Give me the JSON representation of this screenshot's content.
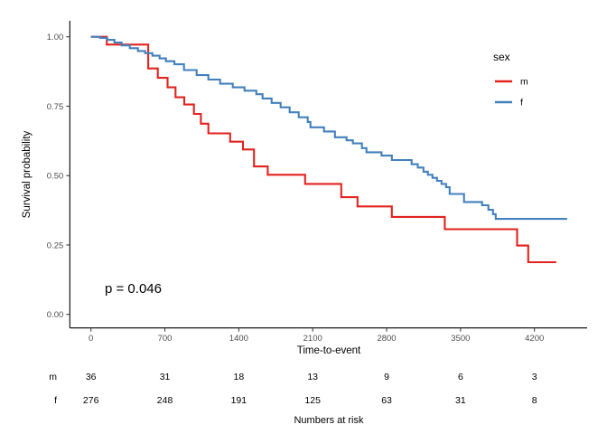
{
  "chart_data": {
    "type": "line",
    "subtype": "kaplan-meier-step",
    "title": "",
    "xlabel": "Time-to-event",
    "ylabel": "Survival probability",
    "p_value": "p = 0.046",
    "grid": false,
    "legend_position": "right",
    "x_axis": {
      "tick_values": [
        0,
        700,
        1400,
        2100,
        2800,
        3500,
        4200
      ],
      "tick_labels": [
        "0",
        "700",
        "1400",
        "2100",
        "2800",
        "3500",
        "4200"
      ],
      "range": [
        -200,
        4700
      ]
    },
    "y_axis": {
      "tick_values": [
        0,
        0.25,
        0.5,
        0.75,
        1.0
      ],
      "tick_labels": [
        "0.00",
        "0.25",
        "0.50",
        "0.75",
        "1.00"
      ],
      "range": [
        -0.05,
        1.05
      ]
    },
    "legend": {
      "title": "sex",
      "items": [
        {
          "label": "m",
          "color": "#e2231e"
        },
        {
          "label": "f",
          "color": "#4381bd"
        }
      ]
    },
    "series": [
      {
        "name": "m",
        "color": "#e2231e",
        "end_time": 4406,
        "points": [
          [
            0,
            1.0
          ],
          [
            150,
            0.972
          ],
          [
            542,
            0.886
          ],
          [
            633,
            0.852
          ],
          [
            725,
            0.818
          ],
          [
            801,
            0.782
          ],
          [
            884,
            0.756
          ],
          [
            975,
            0.722
          ],
          [
            1041,
            0.687
          ],
          [
            1112,
            0.652
          ],
          [
            1318,
            0.622
          ],
          [
            1440,
            0.594
          ],
          [
            1544,
            0.533
          ],
          [
            1674,
            0.503
          ],
          [
            2028,
            0.47
          ],
          [
            2370,
            0.422
          ],
          [
            2524,
            0.389
          ],
          [
            2849,
            0.351
          ],
          [
            3351,
            0.307
          ],
          [
            4036,
            0.248
          ],
          [
            4141,
            0.188
          ]
        ]
      },
      {
        "name": "f",
        "color": "#4381bd",
        "end_time": 4510,
        "points": [
          [
            0,
            1.0
          ],
          [
            86,
            0.996
          ],
          [
            154,
            0.989
          ],
          [
            222,
            0.979
          ],
          [
            291,
            0.969
          ],
          [
            368,
            0.959
          ],
          [
            445,
            0.949
          ],
          [
            513,
            0.941
          ],
          [
            582,
            0.932
          ],
          [
            650,
            0.922
          ],
          [
            710,
            0.912
          ],
          [
            790,
            0.901
          ],
          [
            881,
            0.88
          ],
          [
            1001,
            0.862
          ],
          [
            1112,
            0.846
          ],
          [
            1223,
            0.831
          ],
          [
            1343,
            0.818
          ],
          [
            1454,
            0.806
          ],
          [
            1566,
            0.793
          ],
          [
            1625,
            0.778
          ],
          [
            1711,
            0.762
          ],
          [
            1796,
            0.746
          ],
          [
            1882,
            0.728
          ],
          [
            1967,
            0.71
          ],
          [
            2053,
            0.693
          ],
          [
            2079,
            0.674
          ],
          [
            2207,
            0.659
          ],
          [
            2310,
            0.638
          ],
          [
            2421,
            0.627
          ],
          [
            2481,
            0.616
          ],
          [
            2566,
            0.599
          ],
          [
            2609,
            0.584
          ],
          [
            2752,
            0.572
          ],
          [
            2849,
            0.556
          ],
          [
            3037,
            0.541
          ],
          [
            3095,
            0.529
          ],
          [
            3149,
            0.514
          ],
          [
            3191,
            0.503
          ],
          [
            3234,
            0.492
          ],
          [
            3277,
            0.481
          ],
          [
            3320,
            0.47
          ],
          [
            3363,
            0.458
          ],
          [
            3397,
            0.434
          ],
          [
            3533,
            0.405
          ],
          [
            3704,
            0.393
          ],
          [
            3764,
            0.377
          ],
          [
            3807,
            0.361
          ],
          [
            3833,
            0.344
          ]
        ]
      }
    ],
    "risk_table": {
      "title": "Numbers at risk",
      "times": [
        0,
        700,
        1400,
        2100,
        2800,
        3500,
        4200
      ],
      "rows": [
        {
          "label": "m",
          "values": [
            "36",
            "31",
            "18",
            "13",
            "9",
            "6",
            "3"
          ]
        },
        {
          "label": "f",
          "values": [
            "276",
            "248",
            "191",
            "125",
            "63",
            "31",
            "8"
          ]
        }
      ]
    }
  }
}
